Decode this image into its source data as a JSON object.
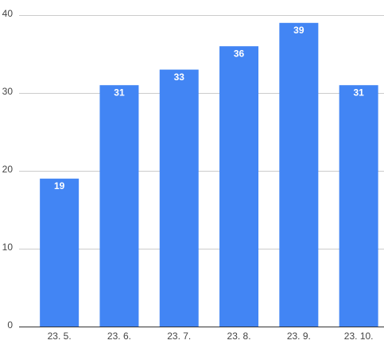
{
  "chart_data": {
    "type": "bar",
    "categories": [
      "23. 5.",
      "23. 6.",
      "23. 7.",
      "23. 8.",
      "23. 9.",
      "23. 10."
    ],
    "values": [
      19,
      31,
      33,
      36,
      39,
      31
    ],
    "color": "#4285f4",
    "ylim": [
      0,
      40
    ],
    "yticks": [
      0,
      10,
      20,
      30,
      40
    ],
    "grid": true
  }
}
